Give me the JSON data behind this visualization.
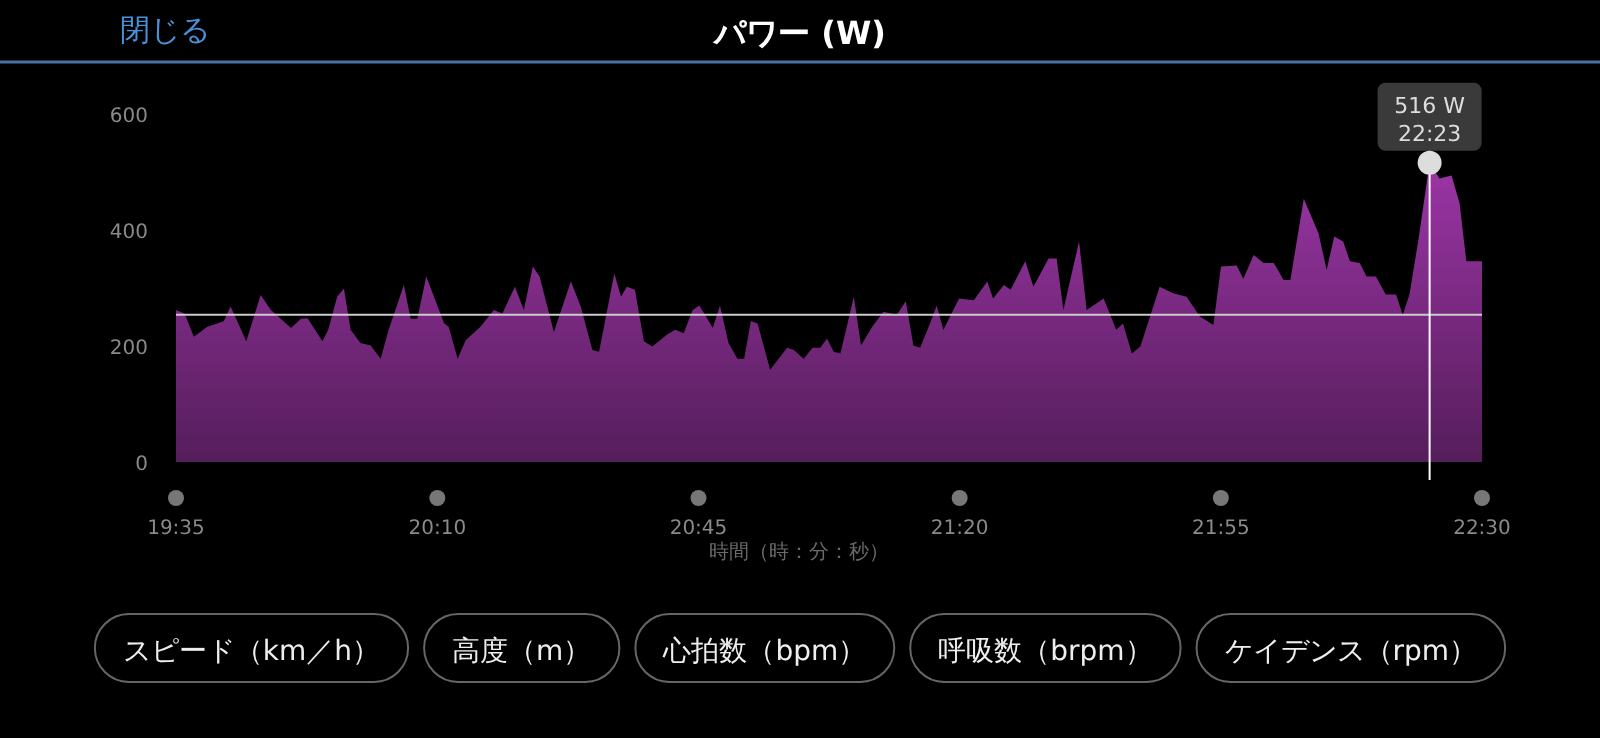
{
  "chart_data": {
    "type": "area",
    "title": "パワー (W)",
    "xlabel": "時間（時：分：秒）",
    "annotations": [
      "閉じる",
      "スピード（km／h）",
      "高度（m）",
      "心拍数（bpm）",
      "呼吸数（brpm）",
      "ケイデンス（rpm）",
      {
        "text": "516 W\n22:23",
        "x": 22.383,
        "y": 516
      }
    ],
    "xlim": [
      19.583,
      22.5
    ],
    "xticks": [
      {
        "value": 19.583,
        "label": "19:35"
      },
      {
        "value": 20.1667,
        "label": "20:10"
      },
      {
        "value": 20.75,
        "label": "20:45"
      },
      {
        "value": 21.3333,
        "label": "21:20"
      },
      {
        "value": 21.9167,
        "label": "21:55"
      },
      {
        "value": 22.5,
        "label": "22:30"
      }
    ],
    "ylim": [
      0,
      600
    ],
    "yticks": [
      0,
      200,
      400,
      600
    ],
    "ref_lines": [
      {
        "axis": "y",
        "value": 254,
        "color": "#cccccc"
      },
      {
        "axis": "x",
        "value": 22.383,
        "color": "#ffffff"
      }
    ],
    "series": [
      {
        "color": "#9b35a5",
        "x": [
          19.583,
          19.602,
          19.623,
          19.653,
          19.675,
          19.69,
          19.705,
          19.74,
          19.772,
          19.795,
          19.84,
          19.862,
          19.877,
          19.91,
          19.923,
          19.943,
          19.958,
          19.973,
          19.995,
          20.018,
          20.04,
          20.058,
          20.092,
          20.107,
          20.122,
          20.142,
          20.182,
          20.192,
          20.212,
          20.23,
          20.263,
          20.293,
          20.312,
          20.34,
          20.36,
          20.38,
          20.395,
          20.427,
          20.465,
          20.487,
          20.513,
          20.528,
          20.562,
          20.577,
          20.59,
          20.608,
          20.628,
          20.647,
          20.68,
          20.698,
          20.717,
          20.737,
          20.752,
          20.782,
          20.798,
          20.817,
          20.837,
          20.852,
          20.867,
          20.882,
          20.91,
          20.948,
          20.963,
          20.985,
          21.005,
          21.022,
          21.037,
          21.052,
          21.067,
          21.097,
          21.113,
          21.138,
          21.163,
          21.193,
          21.213,
          21.23,
          21.245,
          21.267,
          21.282,
          21.297,
          21.332,
          21.365,
          21.395,
          21.408,
          21.432,
          21.447,
          21.48,
          21.498,
          21.532,
          21.55,
          21.565,
          21.6,
          21.617,
          21.655,
          21.683,
          21.698,
          21.718,
          21.737,
          21.78,
          21.81,
          21.84,
          21.87,
          21.9,
          21.917,
          21.952,
          21.967,
          21.99,
          22.012,
          22.035,
          22.057,
          22.072,
          22.102,
          22.135,
          22.153,
          22.17,
          22.19,
          22.205,
          22.227,
          22.242,
          22.263,
          22.285,
          22.308,
          22.323,
          22.338,
          22.358,
          22.383,
          22.405,
          22.432,
          22.45,
          22.465,
          22.5
        ],
        "values": [
          262,
          256,
          216,
          233,
          239,
          243,
          268,
          208,
          288,
          262,
          231,
          247,
          248,
          208,
          228,
          285,
          299,
          228,
          205,
          201,
          178,
          228,
          305,
          247,
          247,
          320,
          239,
          233,
          178,
          210,
          233,
          262,
          256,
          302,
          262,
          337,
          320,
          224,
          311,
          268,
          193,
          190,
          325,
          285,
          302,
          297,
          208,
          199,
          220,
          228,
          222,
          262,
          270,
          231,
          270,
          205,
          178,
          178,
          243,
          239,
          159,
          197,
          193,
          178,
          197,
          197,
          213,
          190,
          187,
          285,
          201,
          233,
          259,
          254,
          277,
          201,
          197,
          239,
          270,
          228,
          282,
          279,
          311,
          282,
          305,
          297,
          346,
          302,
          351,
          351,
          262,
          380,
          262,
          282,
          228,
          239,
          187,
          199,
          302,
          291,
          285,
          251,
          236,
          337,
          339,
          316,
          357,
          343,
          343,
          314,
          314,
          454,
          394,
          331,
          389,
          380,
          346,
          343,
          320,
          320,
          289,
          289,
          254,
          289,
          383,
          516,
          489,
          494,
          446,
          346,
          346
        ]
      }
    ]
  }
}
